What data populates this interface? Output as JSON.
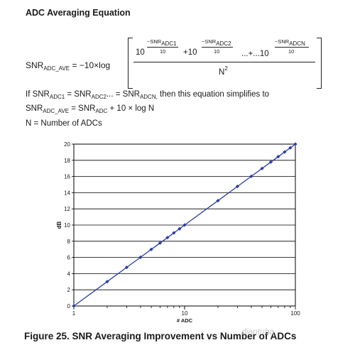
{
  "heading": "ADC Averaging Equation",
  "equation": {
    "lhs_main": "SNR",
    "lhs_sub": "ADC_AVE",
    "lhs_rest": "= −10×log",
    "term_exp_num": "−SNR",
    "sub_adc1": "ADC1",
    "sub_adc2": "ADC2",
    "sub_adcn": "ADCN",
    "exp_den": "10",
    "base": "10",
    "plus": "+10",
    "dots": "...+...10",
    "denominator_base": "N",
    "denominator_exp": "2"
  },
  "simplify": {
    "line1_pre": "If SNR",
    "line1_sub1": "ADC1",
    "line1_mid": " = SNR",
    "line1_sub2": "ADC2",
    "line1_mid2": "... = SNR",
    "line1_sub3": "ADCN,",
    "line1_post": " then this equation simplifies to",
    "line2_pre": "SNR",
    "line2_sub1": "ADC_AVE",
    "line2_mid": " = SNR",
    "line2_sub2": "ADC",
    "line2_post": " + 10 × log N",
    "line3": "N = Number of ADCs"
  },
  "caption": "Figure 25. SNR Averaging Improvement vs Number of ADCs",
  "watermark": "diantuba",
  "colors": {
    "series": "#2c3ea6",
    "grid": "#000000",
    "text": "#1a1a1a"
  },
  "chart_data": {
    "type": "line",
    "x_scale": "log",
    "xlabel": "# ADC",
    "ylabel": "dB",
    "xlim": [
      1,
      100
    ],
    "ylim": [
      0,
      20
    ],
    "x_ticks": [
      1,
      10,
      100
    ],
    "y_ticks": [
      0,
      2,
      4,
      6,
      8,
      10,
      12,
      14,
      16,
      18,
      20
    ],
    "grid": "horizontal",
    "series": [
      {
        "marker": "diamond",
        "x": [
          1,
          2,
          3,
          4,
          5,
          6,
          7,
          8,
          9,
          10,
          20,
          30,
          40,
          50,
          60,
          70,
          80,
          90,
          100
        ],
        "y": [
          0,
          3.01,
          4.77,
          6.02,
          6.99,
          7.78,
          8.45,
          9.03,
          9.54,
          10.0,
          13.01,
          14.77,
          16.02,
          16.99,
          17.78,
          18.45,
          19.03,
          19.54,
          20.0
        ]
      }
    ]
  }
}
